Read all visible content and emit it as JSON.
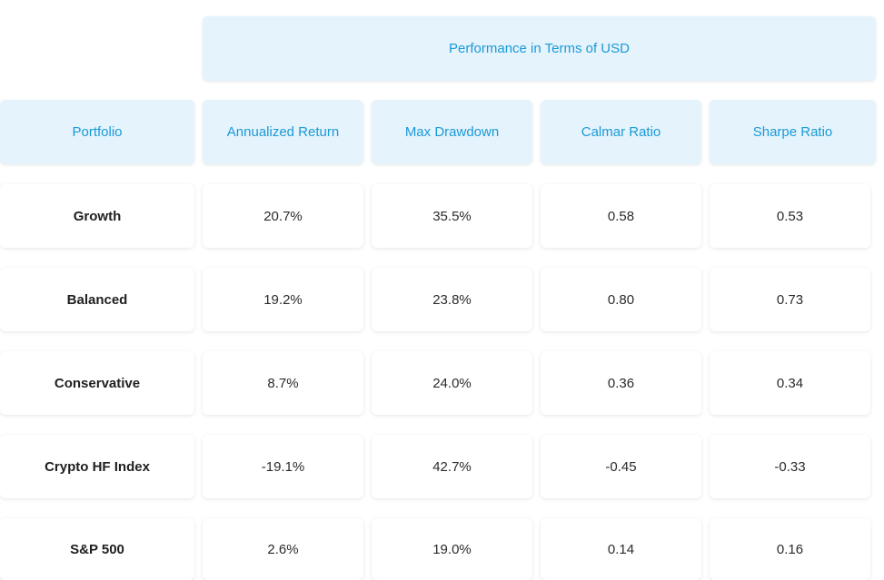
{
  "table": {
    "group_header": "Performance in Terms of USD",
    "columns": [
      "Portfolio",
      "Annualized Return",
      "Max Drawdown",
      "Calmar Ratio",
      "Sharpe Ratio"
    ],
    "rows": [
      {
        "portfolio": "Growth",
        "annualized_return": "20.7%",
        "max_drawdown": "35.5%",
        "calmar_ratio": "0.58",
        "sharpe_ratio": "0.53"
      },
      {
        "portfolio": "Balanced",
        "annualized_return": "19.2%",
        "max_drawdown": "23.8%",
        "calmar_ratio": "0.80",
        "sharpe_ratio": "0.73"
      },
      {
        "portfolio": "Conservative",
        "annualized_return": "8.7%",
        "max_drawdown": "24.0%",
        "calmar_ratio": "0.36",
        "sharpe_ratio": "0.34"
      },
      {
        "portfolio": "Crypto HF Index",
        "annualized_return": "-19.1%",
        "max_drawdown": "42.7%",
        "calmar_ratio": "-0.45",
        "sharpe_ratio": "-0.33"
      },
      {
        "portfolio": "S&P 500",
        "annualized_return": "2.6%",
        "max_drawdown": "19.0%",
        "calmar_ratio": "0.14",
        "sharpe_ratio": "0.16"
      }
    ]
  },
  "colors": {
    "header_bg": "#e4f3fc",
    "header_text": "#1a9ad8",
    "cell_bg": "#ffffff",
    "cell_text": "#2b2b2b"
  }
}
